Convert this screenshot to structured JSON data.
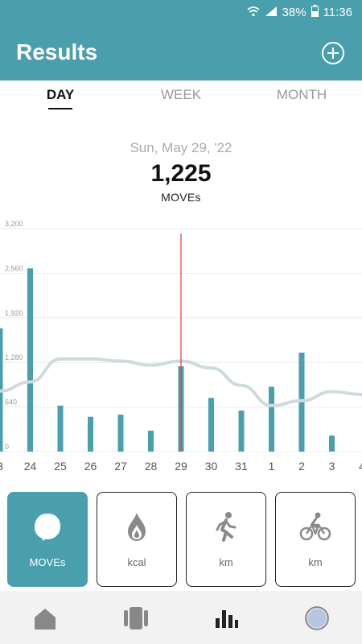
{
  "status_bar": {
    "battery": "38%",
    "time": "11:36"
  },
  "header": {
    "title": "Results"
  },
  "tabs": [
    {
      "label": "DAY",
      "active": true
    },
    {
      "label": "WEEK",
      "active": false
    },
    {
      "label": "MONTH",
      "active": false
    }
  ],
  "summary": {
    "date": "Sun, May 29, '22",
    "value": "1,225",
    "unit": "MOVEs"
  },
  "metrics": [
    {
      "label": "MOVEs",
      "icon": "moves-blob-icon",
      "active": true
    },
    {
      "label": "kcal",
      "icon": "flame-icon",
      "active": false
    },
    {
      "label": "km",
      "icon": "walking-person-icon",
      "active": false
    },
    {
      "label": "km",
      "icon": "cycling-person-icon",
      "active": false
    }
  ],
  "nav": [
    {
      "icon": "home-icon"
    },
    {
      "icon": "device-icon"
    },
    {
      "icon": "bar-chart-icon"
    },
    {
      "icon": "profile-avatar-icon"
    }
  ],
  "colors": {
    "accent": "#4a9fad",
    "marker": "#e53935",
    "trend": "#cfdadd"
  },
  "chart_data": {
    "type": "bar",
    "categories": [
      "3",
      "24",
      "25",
      "26",
      "27",
      "28",
      "29",
      "30",
      "31",
      "1",
      "2",
      "3",
      "4"
    ],
    "values": [
      1770,
      2630,
      660,
      500,
      530,
      300,
      1225,
      770,
      590,
      930,
      1420,
      230,
      null
    ],
    "trend": [
      870,
      1000,
      1330,
      1330,
      1300,
      1240,
      1300,
      1200,
      950,
      660,
      730,
      860,
      820
    ],
    "selected_index": 6,
    "ylim": [
      0,
      3200
    ],
    "yticks": [
      "0",
      "640",
      "1,280",
      "1,920",
      "2,560",
      "3,200"
    ],
    "grid": true
  }
}
